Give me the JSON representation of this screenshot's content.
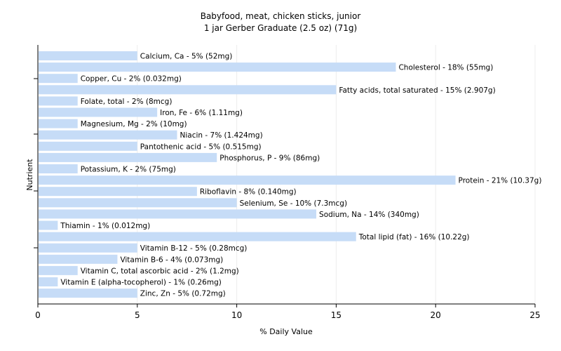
{
  "chart_data": {
    "type": "bar",
    "orientation": "horizontal",
    "title": "Babyfood, meat, chicken sticks, junior",
    "subtitle": "1 jar Gerber Graduate (2.5 oz) (71g)",
    "xlabel": "% Daily Value",
    "ylabel": "Nutrient",
    "xlim": [
      0,
      25
    ],
    "xticks": [
      0,
      5,
      10,
      15,
      20,
      25
    ],
    "grid": true,
    "bar_color": "#c6dcf7",
    "categories": [
      "Calcium, Ca",
      "Cholesterol",
      "Copper, Cu",
      "Fatty acids, total saturated",
      "Folate, total",
      "Iron, Fe",
      "Magnesium, Mg",
      "Niacin",
      "Pantothenic acid",
      "Phosphorus, P",
      "Potassium, K",
      "Protein",
      "Riboflavin",
      "Selenium, Se",
      "Sodium, Na",
      "Thiamin",
      "Total lipid (fat)",
      "Vitamin B-12",
      "Vitamin B-6",
      "Vitamin C, total ascorbic acid",
      "Vitamin E (alpha-tocopherol)",
      "Zinc, Zn"
    ],
    "values": [
      5,
      18,
      2,
      15,
      2,
      6,
      2,
      7,
      5,
      9,
      2,
      21,
      8,
      10,
      14,
      1,
      16,
      5,
      4,
      2,
      1,
      5
    ],
    "labels": [
      "Calcium, Ca - 5% (52mg)",
      "Cholesterol - 18% (55mg)",
      "Copper, Cu - 2% (0.032mg)",
      "Fatty acids, total saturated - 15% (2.907g)",
      "Folate, total - 2% (8mcg)",
      "Iron, Fe - 6% (1.11mg)",
      "Magnesium, Mg - 2% (10mg)",
      "Niacin - 7% (1.424mg)",
      "Pantothenic acid - 5% (0.515mg)",
      "Phosphorus, P - 9% (86mg)",
      "Potassium, K - 2% (75mg)",
      "Protein - 21% (10.37g)",
      "Riboflavin - 8% (0.140mg)",
      "Selenium, Se - 10% (7.3mcg)",
      "Sodium, Na - 14% (340mg)",
      "Thiamin - 1% (0.012mg)",
      "Total lipid (fat) - 16% (10.22g)",
      "Vitamin B-12 - 5% (0.28mcg)",
      "Vitamin B-6 - 4% (0.073mg)",
      "Vitamin C, total ascorbic acid - 2% (1.2mg)",
      "Vitamin E (alpha-tocopherol) - 1% (0.26mg)",
      "Zinc, Zn - 5% (0.72mg)"
    ]
  }
}
